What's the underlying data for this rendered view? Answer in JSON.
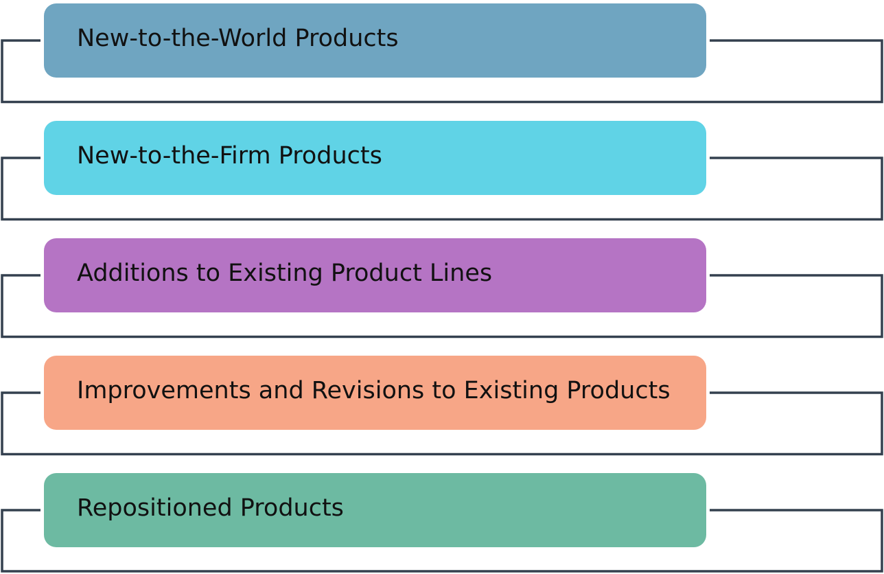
{
  "diagram": {
    "line_color": "#34404f",
    "items": [
      {
        "label": "New-to-the-World Products",
        "color": "#6fa5c1"
      },
      {
        "label": "New-to-the-Firm Products",
        "color": "#60d3e6"
      },
      {
        "label": "Additions to Existing Product Lines",
        "color": "#b574c4"
      },
      {
        "label": "Improvements and Revisions to Existing Products",
        "color": "#f7a687"
      },
      {
        "label": "Repositioned Products",
        "color": "#6dbaa2"
      }
    ]
  }
}
